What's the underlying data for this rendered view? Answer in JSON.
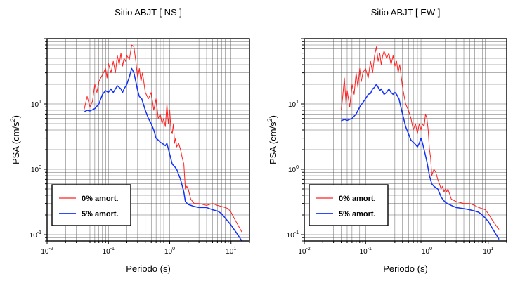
{
  "chart_data": [
    {
      "type": "line",
      "title": "Sitio ABJT [ NS ]",
      "xlabel": "Periodo (s)",
      "ylabel": "PSA (cm/s",
      "ylabel_sup": "2",
      "ylabel_close": ")",
      "x_scale": "log",
      "y_scale": "log",
      "xlim": [
        0.01,
        20
      ],
      "ylim": [
        0.08,
        100
      ],
      "grid": true,
      "legend_position": "bottom-left",
      "x_ticks": [
        {
          "base": "10",
          "exp": "-2"
        },
        {
          "base": "10",
          "exp": "-1"
        },
        {
          "base": "10",
          "exp": "0"
        },
        {
          "base": "10",
          "exp": "1"
        }
      ],
      "y_ticks": [
        {
          "base": "10",
          "exp": "-1"
        },
        {
          "base": "10",
          "exp": "0"
        },
        {
          "base": "10",
          "exp": "1"
        }
      ],
      "series": [
        {
          "name": "0% amort.",
          "color": "#ff2020",
          "points": [
            [
              0.04,
              8
            ],
            [
              0.045,
              13
            ],
            [
              0.05,
              9
            ],
            [
              0.055,
              11
            ],
            [
              0.06,
              20
            ],
            [
              0.065,
              15
            ],
            [
              0.07,
              22
            ],
            [
              0.075,
              25
            ],
            [
              0.08,
              28
            ],
            [
              0.09,
              35
            ],
            [
              0.095,
              25
            ],
            [
              0.1,
              42
            ],
            [
              0.11,
              30
            ],
            [
              0.12,
              45
            ],
            [
              0.13,
              30
            ],
            [
              0.14,
              55
            ],
            [
              0.15,
              40
            ],
            [
              0.16,
              60
            ],
            [
              0.17,
              38
            ],
            [
              0.18,
              50
            ],
            [
              0.19,
              45
            ],
            [
              0.2,
              55
            ],
            [
              0.22,
              48
            ],
            [
              0.24,
              80
            ],
            [
              0.26,
              75
            ],
            [
              0.28,
              45
            ],
            [
              0.3,
              25
            ],
            [
              0.32,
              35
            ],
            [
              0.34,
              22
            ],
            [
              0.36,
              30
            ],
            [
              0.4,
              15
            ],
            [
              0.45,
              12
            ],
            [
              0.5,
              15
            ],
            [
              0.55,
              8
            ],
            [
              0.6,
              12
            ],
            [
              0.65,
              6
            ],
            [
              0.7,
              7
            ],
            [
              0.75,
              5
            ],
            [
              0.8,
              6
            ],
            [
              0.85,
              4.5
            ],
            [
              0.9,
              10
            ],
            [
              0.95,
              5
            ],
            [
              1.0,
              8
            ],
            [
              1.05,
              4
            ],
            [
              1.1,
              3.5
            ],
            [
              1.15,
              5
            ],
            [
              1.2,
              2.5
            ],
            [
              1.25,
              3
            ],
            [
              1.3,
              2.2
            ],
            [
              1.4,
              2.5
            ],
            [
              1.5,
              2
            ],
            [
              1.6,
              1.5
            ],
            [
              1.7,
              1.2
            ],
            [
              1.8,
              0.5
            ],
            [
              1.9,
              0.55
            ],
            [
              2.0,
              0.5
            ],
            [
              2.2,
              0.35
            ],
            [
              2.5,
              0.3
            ],
            [
              3,
              0.3
            ],
            [
              4,
              0.28
            ],
            [
              5,
              0.3
            ],
            [
              6,
              0.28
            ],
            [
              7,
              0.27
            ],
            [
              8,
              0.26
            ],
            [
              9,
              0.25
            ],
            [
              10,
              0.22
            ],
            [
              12,
              0.16
            ],
            [
              15,
              0.11
            ]
          ]
        },
        {
          "name": "5% amort.",
          "color": "#1030ff",
          "points": [
            [
              0.04,
              7.5
            ],
            [
              0.045,
              8
            ],
            [
              0.05,
              7.8
            ],
            [
              0.06,
              8.5
            ],
            [
              0.07,
              10
            ],
            [
              0.08,
              14
            ],
            [
              0.09,
              16
            ],
            [
              0.1,
              15
            ],
            [
              0.11,
              17
            ],
            [
              0.12,
              15
            ],
            [
              0.13,
              17
            ],
            [
              0.14,
              19
            ],
            [
              0.15,
              18
            ],
            [
              0.16,
              17
            ],
            [
              0.17,
              15
            ],
            [
              0.18,
              17
            ],
            [
              0.2,
              20
            ],
            [
              0.22,
              26
            ],
            [
              0.24,
              35
            ],
            [
              0.26,
              30
            ],
            [
              0.28,
              22
            ],
            [
              0.3,
              16
            ],
            [
              0.32,
              13
            ],
            [
              0.35,
              12
            ],
            [
              0.4,
              8
            ],
            [
              0.45,
              6
            ],
            [
              0.5,
              5
            ],
            [
              0.55,
              4
            ],
            [
              0.6,
              3
            ],
            [
              0.65,
              2.8
            ],
            [
              0.7,
              2.6
            ],
            [
              0.75,
              2.5
            ],
            [
              0.8,
              2.4
            ],
            [
              0.85,
              2.3
            ],
            [
              0.9,
              2.5
            ],
            [
              1.0,
              1.7
            ],
            [
              1.1,
              1.2
            ],
            [
              1.2,
              1.1
            ],
            [
              1.3,
              1.0
            ],
            [
              1.5,
              0.7
            ],
            [
              1.7,
              0.45
            ],
            [
              1.8,
              0.32
            ],
            [
              2.0,
              0.29
            ],
            [
              2.5,
              0.27
            ],
            [
              3,
              0.26
            ],
            [
              4,
              0.26
            ],
            [
              5,
              0.24
            ],
            [
              6,
              0.23
            ],
            [
              7,
              0.21
            ],
            [
              8,
              0.18
            ],
            [
              10,
              0.14
            ],
            [
              12,
              0.11
            ],
            [
              15,
              0.08
            ]
          ]
        }
      ]
    },
    {
      "type": "line",
      "title": "Sitio ABJT [ EW ]",
      "xlabel": "Periodo (s)",
      "ylabel": "PSA (cm/s",
      "ylabel_sup": "2",
      "ylabel_close": ")",
      "x_scale": "log",
      "y_scale": "log",
      "xlim": [
        0.01,
        20
      ],
      "ylim": [
        0.08,
        100
      ],
      "grid": true,
      "legend_position": "bottom-left",
      "x_ticks": [
        {
          "base": "10",
          "exp": "-2"
        },
        {
          "base": "10",
          "exp": "-1"
        },
        {
          "base": "10",
          "exp": "0"
        },
        {
          "base": "10",
          "exp": "1"
        }
      ],
      "y_ticks": [
        {
          "base": "10",
          "exp": "-1"
        },
        {
          "base": "10",
          "exp": "0"
        },
        {
          "base": "10",
          "exp": "1"
        }
      ],
      "series": [
        {
          "name": "0% amort.",
          "color": "#ff2020",
          "points": [
            [
              0.04,
              8
            ],
            [
              0.042,
              12
            ],
            [
              0.045,
              25
            ],
            [
              0.048,
              10
            ],
            [
              0.05,
              16
            ],
            [
              0.055,
              9
            ],
            [
              0.06,
              20
            ],
            [
              0.065,
              14
            ],
            [
              0.07,
              30
            ],
            [
              0.075,
              18
            ],
            [
              0.08,
              35
            ],
            [
              0.085,
              22
            ],
            [
              0.09,
              30
            ],
            [
              0.1,
              35
            ],
            [
              0.11,
              25
            ],
            [
              0.12,
              45
            ],
            [
              0.13,
              30
            ],
            [
              0.14,
              55
            ],
            [
              0.15,
              75
            ],
            [
              0.16,
              45
            ],
            [
              0.17,
              60
            ],
            [
              0.18,
              40
            ],
            [
              0.19,
              55
            ],
            [
              0.2,
              65
            ],
            [
              0.22,
              50
            ],
            [
              0.24,
              60
            ],
            [
              0.26,
              40
            ],
            [
              0.28,
              55
            ],
            [
              0.3,
              38
            ],
            [
              0.32,
              45
            ],
            [
              0.34,
              30
            ],
            [
              0.36,
              40
            ],
            [
              0.4,
              18
            ],
            [
              0.45,
              10
            ],
            [
              0.5,
              8
            ],
            [
              0.55,
              6
            ],
            [
              0.6,
              4
            ],
            [
              0.65,
              5
            ],
            [
              0.7,
              3.5
            ],
            [
              0.75,
              5
            ],
            [
              0.8,
              4
            ],
            [
              0.85,
              5
            ],
            [
              0.9,
              4.5
            ],
            [
              0.95,
              7
            ],
            [
              1.0,
              6
            ],
            [
              1.05,
              4
            ],
            [
              1.1,
              2
            ],
            [
              1.15,
              1.5
            ],
            [
              1.2,
              0.8
            ],
            [
              1.3,
              1.0
            ],
            [
              1.4,
              0.9
            ],
            [
              1.5,
              0.7
            ],
            [
              1.6,
              0.6
            ],
            [
              1.7,
              0.5
            ],
            [
              1.8,
              0.55
            ],
            [
              1.9,
              0.45
            ],
            [
              2.0,
              0.5
            ],
            [
              2.1,
              0.45
            ],
            [
              2.2,
              0.5
            ],
            [
              2.5,
              0.35
            ],
            [
              3,
              0.32
            ],
            [
              4,
              0.3
            ],
            [
              5,
              0.3
            ],
            [
              6,
              0.28
            ],
            [
              7,
              0.26
            ],
            [
              8,
              0.25
            ],
            [
              9,
              0.24
            ],
            [
              10,
              0.21
            ],
            [
              12,
              0.16
            ],
            [
              15,
              0.12
            ]
          ]
        },
        {
          "name": "5% amort.",
          "color": "#1030ff",
          "points": [
            [
              0.04,
              5.5
            ],
            [
              0.045,
              5.8
            ],
            [
              0.05,
              5.6
            ],
            [
              0.06,
              6
            ],
            [
              0.07,
              7
            ],
            [
              0.08,
              9
            ],
            [
              0.09,
              10.5
            ],
            [
              0.1,
              12
            ],
            [
              0.11,
              14
            ],
            [
              0.12,
              14.5
            ],
            [
              0.13,
              17
            ],
            [
              0.14,
              18
            ],
            [
              0.15,
              20
            ],
            [
              0.16,
              18
            ],
            [
              0.17,
              16
            ],
            [
              0.18,
              17
            ],
            [
              0.2,
              14
            ],
            [
              0.22,
              15
            ],
            [
              0.24,
              17
            ],
            [
              0.26,
              15
            ],
            [
              0.28,
              14
            ],
            [
              0.3,
              15
            ],
            [
              0.32,
              14
            ],
            [
              0.35,
              12
            ],
            [
              0.4,
              7
            ],
            [
              0.45,
              4.5
            ],
            [
              0.5,
              3.5
            ],
            [
              0.55,
              2.8
            ],
            [
              0.6,
              2.6
            ],
            [
              0.65,
              2.4
            ],
            [
              0.7,
              2.2
            ],
            [
              0.75,
              2.5
            ],
            [
              0.8,
              3
            ],
            [
              0.85,
              2.5
            ],
            [
              0.9,
              2.0
            ],
            [
              1.0,
              1.3
            ],
            [
              1.1,
              0.8
            ],
            [
              1.2,
              0.6
            ],
            [
              1.3,
              0.55
            ],
            [
              1.5,
              0.5
            ],
            [
              1.7,
              0.38
            ],
            [
              1.8,
              0.35
            ],
            [
              2.0,
              0.31
            ],
            [
              2.5,
              0.28
            ],
            [
              3,
              0.26
            ],
            [
              4,
              0.25
            ],
            [
              5,
              0.24
            ],
            [
              6,
              0.23
            ],
            [
              7,
              0.22
            ],
            [
              8,
              0.2
            ],
            [
              10,
              0.16
            ],
            [
              12,
              0.12
            ],
            [
              15,
              0.085
            ]
          ]
        }
      ]
    }
  ]
}
